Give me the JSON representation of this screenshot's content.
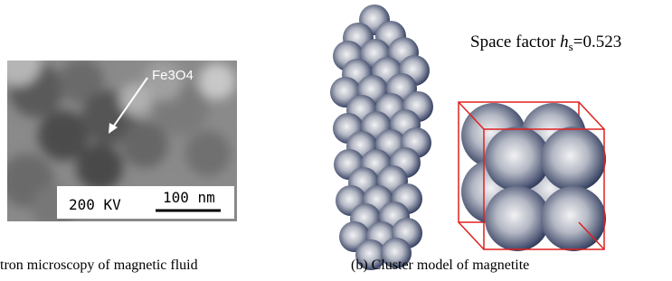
{
  "left": {
    "label": "Fe3O4",
    "scale_kv": "200 KV",
    "scale_bar": "100 nm",
    "caption": "tron microscopy of magnetic fluid"
  },
  "right": {
    "space_factor_label": "Space factor ",
    "symbol": "h",
    "subscript": "s",
    "value_text": "=0.523",
    "caption": "(b) Cluster model of magnetite"
  }
}
